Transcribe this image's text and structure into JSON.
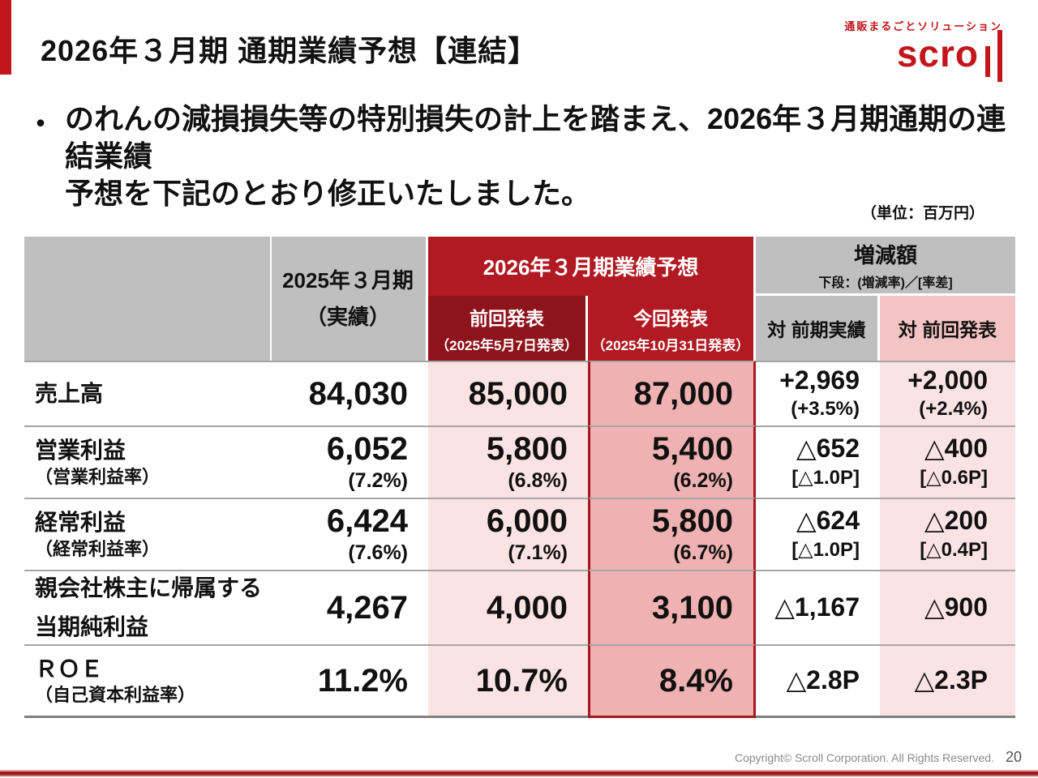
{
  "slide": {
    "title": "2026年３月期 通期業績予想【連結】",
    "bullet_marker": "・",
    "bullet_line1": "のれんの減損損失等の特別損失の計上を踏まえ、2026年３月期通期の連結業績",
    "bullet_line2": "予想を下記のとおり修正いたしました。",
    "unit_note": "（単位：百万円）",
    "footer_copyright": "Copyright© Scroll Corporation. All Rights Reserved.",
    "page_number": "20"
  },
  "brand": {
    "tagline": "通販まるごとソリューション",
    "logo_text": "scro",
    "logo_bars": "stylized-ll",
    "brand_color": "#C3161C"
  },
  "colors": {
    "header_gray": "#BFBFBF",
    "header_red": "#B11A22",
    "header_dark_red": "#8E141C",
    "highlight_border_red": "#A31B22",
    "body_pink_light": "#FBE3E3",
    "body_pink_medium": "#EFB1B1",
    "subheader_pink": "#F4C4C4",
    "accent_red": "#C3161C"
  },
  "table": {
    "header": {
      "actual_line1": "2025年３月期",
      "actual_line2": "（実績）",
      "forecast_span": "2026年３月期業績予想",
      "prev_title": "前回発表",
      "prev_date": "（2025年5月7日発表）",
      "curr_title": "今回発表",
      "curr_date": "（2025年10月31日発表）",
      "change_title": "増減額",
      "change_note": "下段：(増減率)／[率差]",
      "vs_actual": "対 前期実績",
      "vs_prev": "対 前回発表"
    },
    "rows": [
      {
        "label": "売上高",
        "actual": "84,030",
        "prev": "85,000",
        "curr": "87,000",
        "vs_actual": "+2,969",
        "vs_actual_sub": "(+3.5%)",
        "vs_prev": "+2,000",
        "vs_prev_sub": "(+2.4%)"
      },
      {
        "label": "営業利益",
        "sublabel": "（営業利益率）",
        "actual": "6,052",
        "actual_sub": "(7.2%)",
        "prev": "5,800",
        "prev_sub": "(6.8%)",
        "curr": "5,400",
        "curr_sub": "(6.2%)",
        "vs_actual": "△652",
        "vs_actual_sub": "[△1.0P]",
        "vs_prev": "△400",
        "vs_prev_sub": "[△0.6P]"
      },
      {
        "label": "経常利益",
        "sublabel": "（経常利益率）",
        "actual": "6,424",
        "actual_sub": "(7.6%)",
        "prev": "6,000",
        "prev_sub": "(7.1%)",
        "curr": "5,800",
        "curr_sub": "(6.7%)",
        "vs_actual": "△624",
        "vs_actual_sub": "[△1.0P]",
        "vs_prev": "△200",
        "vs_prev_sub": "[△0.4P]"
      },
      {
        "label": "親会社株主に帰属する",
        "label2": "当期純利益",
        "actual": "4,267",
        "prev": "4,000",
        "curr": "3,100",
        "vs_actual": "△1,167",
        "vs_prev": "△900"
      },
      {
        "label": "ＲＯＥ",
        "sublabel": "（自己資本利益率）",
        "actual": "11.2%",
        "prev": "10.7%",
        "curr": "8.4%",
        "vs_actual": "△2.8P",
        "vs_prev": "△2.3P"
      }
    ]
  }
}
